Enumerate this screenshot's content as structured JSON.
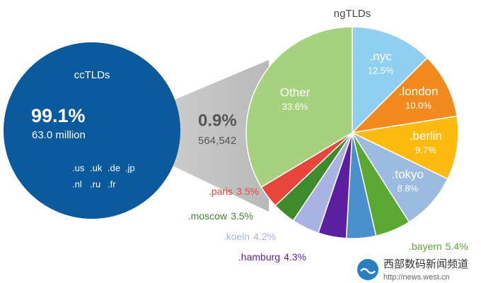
{
  "chart_data": {
    "type": "pie-of-pie",
    "main": {
      "title": "ccTLDs",
      "value": 99.1,
      "value_label": "99.1%",
      "count_label": "63.0 million",
      "members": [
        ".us",
        ".uk",
        ".de",
        ".jp",
        ".nl",
        ".ru",
        ".fr"
      ],
      "color": "#0b5a9e"
    },
    "detail": {
      "value": 0.9,
      "value_label": "0.9%",
      "count_label": "564,542"
    },
    "title": "ngTLDs",
    "categories": [
      ".nyc",
      ".london",
      ".berlin",
      ".tokyo",
      ".bayern",
      null,
      ".hamburg",
      ".koeln",
      ".moscow",
      ".paris",
      "Other"
    ],
    "values": [
      12.5,
      10.0,
      9.7,
      8.8,
      5.4,
      4.5,
      4.3,
      4.2,
      3.5,
      3.5,
      33.6
    ],
    "value_labels": [
      "12.5%",
      "10.0%",
      "9.7%",
      "8.8%",
      "5.4%",
      null,
      "4.3%",
      "4.2%",
      "3.5%",
      "3.5%",
      "33.6%"
    ],
    "colors": [
      "#8fd0f0",
      "#f28a1e",
      "#fdbb10",
      "#9bbce0",
      "#5aa832",
      "#4a90cc",
      "#5b1fa0",
      "#a9b3e3",
      "#3f8a2a",
      "#e6463c",
      "#a6d17f"
    ]
  },
  "watermark": {
    "name": "西部数码新闻频道",
    "url": "http://news.west.cn"
  }
}
